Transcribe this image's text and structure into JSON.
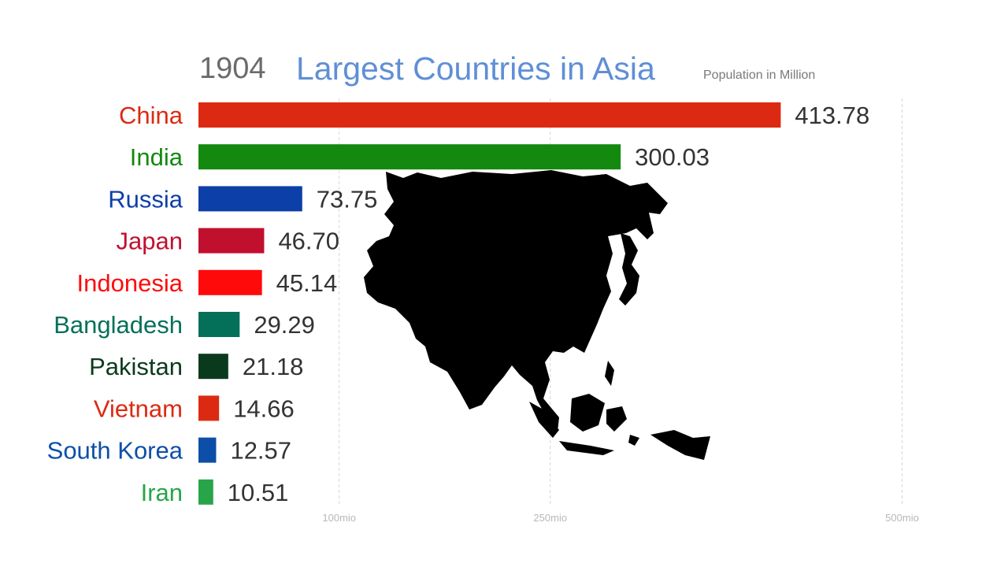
{
  "header": {
    "year": "1904",
    "title": "Largest Countries in Asia",
    "subtitle": "Population in Million"
  },
  "chart_data": {
    "type": "bar",
    "orientation": "horizontal",
    "title": "Largest Countries in Asia",
    "subtitle": "Population in Million",
    "year": "1904",
    "categories": [
      "China",
      "India",
      "Russia",
      "Japan",
      "Indonesia",
      "Bangladesh",
      "Pakistan",
      "Vietnam",
      "South Korea",
      "Iran"
    ],
    "values": [
      413.78,
      300.03,
      73.75,
      46.7,
      45.14,
      29.29,
      21.18,
      14.66,
      12.57,
      10.51
    ],
    "value_labels": [
      "413.78",
      "300.03",
      "73.75",
      "46.70",
      "45.14",
      "29.29",
      "21.18",
      "14.66",
      "12.57",
      "10.51"
    ],
    "colors": [
      "#dc2a12",
      "#14890f",
      "#0d3fa8",
      "#c0102e",
      "#ff0a0a",
      "#05705a",
      "#0a3a1c",
      "#dc2a12",
      "#0d4fa8",
      "#27a548"
    ],
    "x_ticks": [
      100,
      250,
      500
    ],
    "x_tick_labels": [
      "100mio",
      "250mio",
      "500mio"
    ],
    "xlim": [
      0,
      500
    ],
    "grid": true,
    "background_image": "asia-continent-silhouette"
  }
}
